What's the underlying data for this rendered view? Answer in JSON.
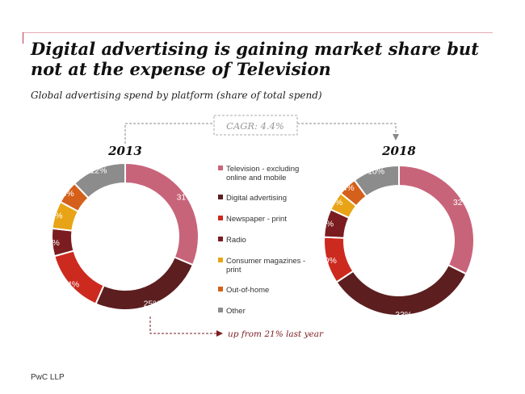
{
  "title": "Digital advertising is gaining market share but not at the expense of Television",
  "subtitle": "Global advertising spend by platform (share of total spend)",
  "cagr_label": "CAGR: 4.4%",
  "annotation": "up from 21% last year",
  "footer": "PwC LLP",
  "chart_data": {
    "type": "pie",
    "unit": "%",
    "categories": [
      "Television - excluding online and mobile",
      "Digital advertising",
      "Newspaper - print",
      "Radio",
      "Consumer magazines - print",
      "Out-of-home",
      "Other"
    ],
    "legend": [
      {
        "label": "Television - excluding online and mobile",
        "color": "#c8647a"
      },
      {
        "label": "Digital advertising",
        "color": "#5c1e1f"
      },
      {
        "label": "Newspaper - print",
        "color": "#cc2a1f"
      },
      {
        "label": "Radio",
        "color": "#7a1c20"
      },
      {
        "label": "Consumer magazines - print",
        "color": "#e8a416"
      },
      {
        "label": "Out-of-home",
        "color": "#d4601b"
      },
      {
        "label": "Other",
        "color": "#8c8c8c"
      }
    ],
    "series": [
      {
        "name": "2013",
        "values": [
          31,
          25,
          14,
          6,
          6,
          5,
          12
        ],
        "labels": [
          "31%",
          "25%",
          "14%",
          "6%",
          "6%",
          "5%",
          "12%"
        ]
      },
      {
        "name": "2018",
        "values": [
          32,
          33,
          10,
          6,
          4,
          4,
          10
        ],
        "labels": [
          "32%",
          "33%",
          "10%",
          "6%",
          "4%",
          "4%",
          "10%"
        ]
      }
    ],
    "legend_placement": "center"
  }
}
